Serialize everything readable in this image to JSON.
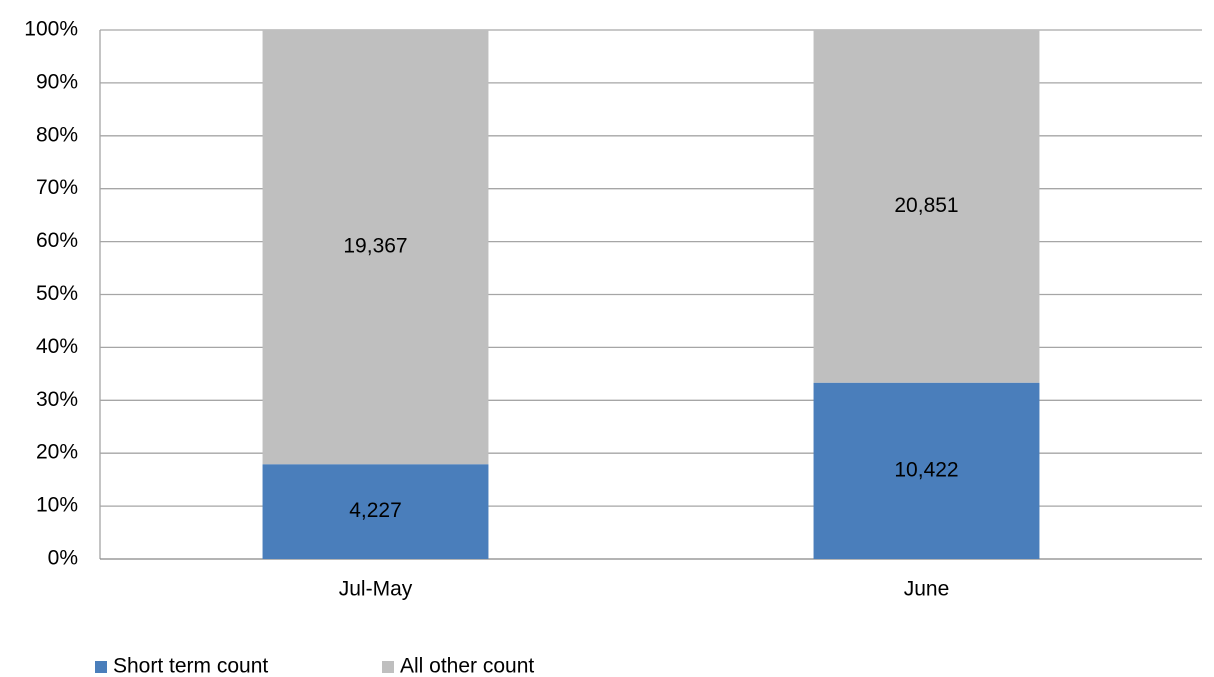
{
  "chart_data": {
    "type": "bar",
    "stacked": "percent",
    "categories": [
      "Jul-May",
      "June"
    ],
    "series": [
      {
        "name": "Short term count",
        "color": "#4a7ebb",
        "values": [
          4227,
          10422
        ],
        "value_labels": [
          "4,227",
          "10,422"
        ]
      },
      {
        "name": "All other count",
        "color": "#bfbfbf",
        "values": [
          19367,
          20851
        ],
        "value_labels": [
          "19,367",
          "20,851"
        ]
      }
    ],
    "ylim": [
      0,
      100
    ],
    "yticks": [
      {
        "value": 0,
        "label": "0%"
      },
      {
        "value": 10,
        "label": "10%"
      },
      {
        "value": 20,
        "label": "20%"
      },
      {
        "value": 30,
        "label": "30%"
      },
      {
        "value": 40,
        "label": "40%"
      },
      {
        "value": 50,
        "label": "50%"
      },
      {
        "value": 60,
        "label": "60%"
      },
      {
        "value": 70,
        "label": "70%"
      },
      {
        "value": 80,
        "label": "80%"
      },
      {
        "value": 90,
        "label": "90%"
      },
      {
        "value": 100,
        "label": "100%"
      }
    ],
    "grid": true,
    "legend": "bottom-left"
  }
}
